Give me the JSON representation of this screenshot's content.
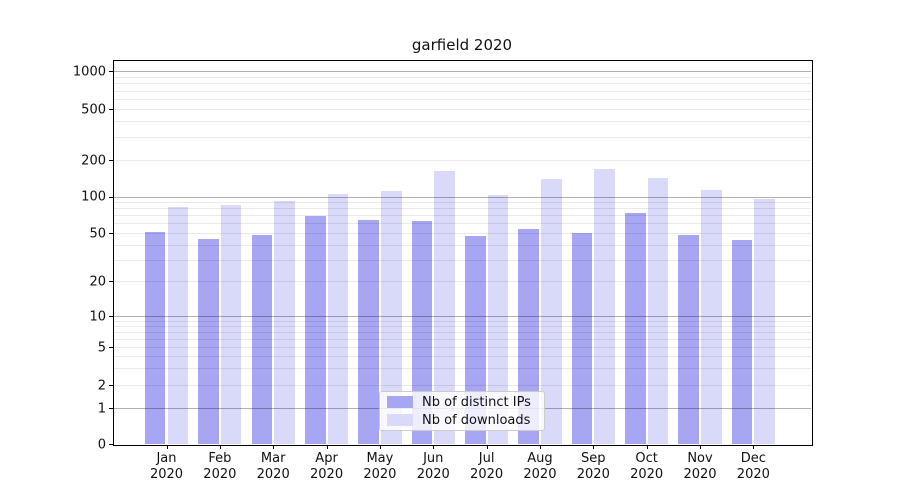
{
  "title": "garfield 2020",
  "chart_data": {
    "type": "bar",
    "title": "garfield 2020",
    "xlabel": "",
    "ylabel": "",
    "yscale": "symlog",
    "yticks": [
      0,
      1,
      2,
      5,
      10,
      20,
      50,
      100,
      200,
      500,
      1000
    ],
    "ylim": [
      0,
      1220
    ],
    "grid": true,
    "legend_position": "lower center",
    "categories": [
      "Jan 2020",
      "Feb 2020",
      "Mar 2020",
      "Apr 2020",
      "May 2020",
      "Jun 2020",
      "Jul 2020",
      "Aug 2020",
      "Sep 2020",
      "Oct 2020",
      "Nov 2020",
      "Dec 2020"
    ],
    "series": [
      {
        "name": "Nb of distinct IPs",
        "color": "#a6a6f2",
        "values": [
          51,
          45,
          48,
          69,
          64,
          63,
          47,
          54,
          50,
          73,
          48,
          44
        ]
      },
      {
        "name": "Nb of downloads",
        "color": "#d9d9fa",
        "values": [
          82,
          85,
          92,
          105,
          112,
          162,
          103,
          139,
          168,
          141,
          114,
          95
        ]
      }
    ]
  },
  "colors": {
    "background": "#ffffff",
    "spine": "#000000",
    "grid_major": "#b3b3b3",
    "grid_minor": "#e8e8e8",
    "legend_border": "#cccccc",
    "text": "#111111"
  }
}
